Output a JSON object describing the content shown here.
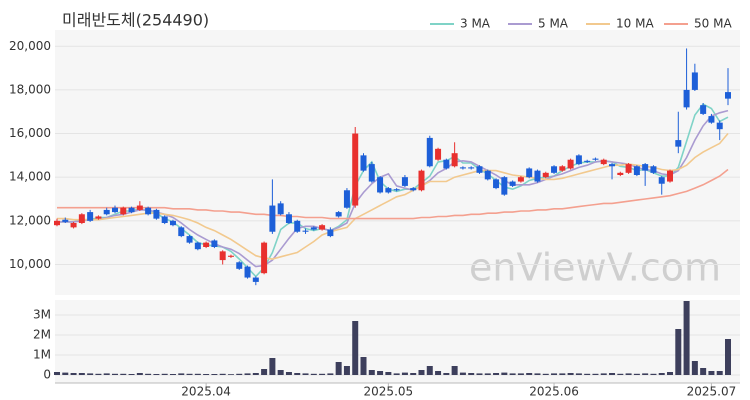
{
  "chart_data": {
    "type": "candlestick",
    "title": "미래반도체(254490)",
    "watermark": "enViewV.com",
    "legend": "top-right",
    "grid": true,
    "categories": [
      null,
      null,
      null,
      null,
      null,
      null,
      null,
      null,
      null,
      null,
      null,
      null,
      null,
      null,
      null,
      null,
      null,
      null,
      "2025.04",
      null,
      null,
      null,
      null,
      null,
      null,
      null,
      null,
      null,
      null,
      null,
      null,
      null,
      null,
      null,
      null,
      null,
      null,
      null,
      null,
      null,
      "2025.05",
      null,
      null,
      null,
      null,
      null,
      null,
      null,
      null,
      null,
      null,
      null,
      null,
      null,
      null,
      null,
      null,
      null,
      null,
      null,
      "2025.06",
      null,
      null,
      null,
      null,
      null,
      null,
      null,
      null,
      null,
      null,
      null,
      null,
      null,
      null,
      null,
      null,
      null,
      null,
      "2025.07",
      null,
      null
    ],
    "open": [
      11800,
      12050,
      11700,
      11900,
      12400,
      12100,
      12500,
      12600,
      12300,
      12600,
      12500,
      12600,
      12500,
      12200,
      12000,
      11700,
      11300,
      11000,
      10800,
      11100,
      10200,
      10350,
      10100,
      9900,
      9400,
      9600,
      12700,
      12800,
      12300,
      12000,
      11550,
      11700,
      11600,
      11600,
      12400,
      13400,
      12700,
      15000,
      14600,
      14000,
      13500,
      13450,
      14000,
      13500,
      13400,
      15800,
      14800,
      14800,
      14500,
      14450,
      14450,
      14500,
      14300,
      13900,
      14000,
      13800,
      13800,
      14400,
      14300,
      14000,
      14500,
      14300,
      14400,
      15000,
      14750,
      14850,
      14600,
      14600,
      14100,
      14200,
      14500,
      14600,
      14500,
      14000,
      13800,
      15700,
      18000,
      18800,
      17300,
      16800,
      16500,
      17900
    ],
    "high": [
      12100,
      12150,
      11950,
      12350,
      12500,
      12250,
      12600,
      12700,
      12650,
      12650,
      12900,
      12650,
      12550,
      12250,
      12050,
      11750,
      11350,
      11050,
      11050,
      11150,
      10650,
      10450,
      10150,
      9950,
      9450,
      11050,
      13900,
      12900,
      12400,
      12050,
      11650,
      11750,
      11850,
      11700,
      12450,
      13500,
      16300,
      15100,
      14700,
      14050,
      13550,
      13500,
      14100,
      13550,
      14350,
      15900,
      15350,
      14850,
      15600,
      14500,
      14500,
      14550,
      14350,
      13950,
      14050,
      13850,
      14050,
      14450,
      14350,
      14250,
      14550,
      14550,
      14850,
      15050,
      14800,
      14900,
      14850,
      14650,
      14250,
      14650,
      14550,
      14650,
      14550,
      14050,
      14350,
      17000,
      19900,
      19200,
      17400,
      16900,
      16600,
      19000
    ],
    "low": [
      11750,
      11900,
      11650,
      11850,
      11950,
      12050,
      12250,
      12350,
      12250,
      12350,
      12450,
      12250,
      12050,
      11850,
      11750,
      11250,
      10950,
      10650,
      10750,
      10750,
      10000,
      10300,
      9750,
      9350,
      9050,
      9550,
      11400,
      12250,
      11850,
      11450,
      11400,
      11550,
      11550,
      11250,
      12150,
      12550,
      12600,
      14250,
      13750,
      13250,
      13250,
      13350,
      13550,
      13350,
      13350,
      14450,
      14750,
      14350,
      14450,
      14350,
      14350,
      14150,
      13850,
      13450,
      13150,
      13550,
      13750,
      13950,
      13750,
      13950,
      14150,
      14250,
      14350,
      14550,
      14650,
      14750,
      14550,
      13900,
      14050,
      14150,
      14050,
      13600,
      14150,
      13200,
      13750,
      15100,
      17100,
      17950,
      16850,
      16450,
      15700,
      17300
    ],
    "close": [
      12000,
      11950,
      11900,
      12300,
      12000,
      12200,
      12300,
      12400,
      12600,
      12400,
      12700,
      12300,
      12100,
      11900,
      11800,
      11300,
      11000,
      10700,
      11000,
      10800,
      10600,
      10400,
      9800,
      9400,
      9200,
      11000,
      11500,
      12300,
      11900,
      11500,
      11500,
      11600,
      11800,
      11300,
      12200,
      12600,
      16000,
      14300,
      13800,
      13300,
      13300,
      13400,
      13600,
      13400,
      14300,
      14500,
      15300,
      14400,
      15100,
      14400,
      14400,
      14200,
      13900,
      13500,
      13200,
      13600,
      14000,
      14000,
      13800,
      14200,
      14200,
      14500,
      14800,
      14600,
      14700,
      14800,
      14800,
      14500,
      14200,
      14600,
      14100,
      14300,
      14200,
      13700,
      14300,
      15400,
      17200,
      18000,
      16900,
      16500,
      16200,
      17600
    ],
    "up_color": "#e8302e",
    "down_color": "#1d5fd8",
    "ylim": [
      8600,
      20700
    ],
    "yticks": [
      {
        "value": 10000,
        "label": "10,000"
      },
      {
        "value": 12000,
        "label": "12,000"
      },
      {
        "value": 14000,
        "label": "14,000"
      },
      {
        "value": 16000,
        "label": "16,000"
      },
      {
        "value": 18000,
        "label": "18,000"
      },
      {
        "value": 20000,
        "label": "20,000"
      }
    ],
    "ma_series": [
      {
        "name": "3 MA",
        "color": "#7fd3c7",
        "values": [
          11950,
          11950,
          11950,
          12050,
          12050,
          12150,
          12150,
          12300,
          12450,
          12450,
          12550,
          12450,
          12350,
          12100,
          11950,
          11650,
          11350,
          11000,
          10900,
          10850,
          10800,
          10600,
          10250,
          9850,
          9450,
          9850,
          10550,
          11600,
          11900,
          11900,
          11650,
          11550,
          11650,
          11550,
          11750,
          12050,
          13600,
          14300,
          14700,
          13800,
          13450,
          13350,
          13450,
          13450,
          13750,
          14050,
          14700,
          14750,
          14950,
          14650,
          14650,
          14350,
          14150,
          13850,
          13550,
          13450,
          13600,
          13850,
          13950,
          14000,
          14050,
          14300,
          14500,
          14650,
          14700,
          14700,
          14750,
          14700,
          14500,
          14450,
          14300,
          14350,
          14200,
          14050,
          14050,
          14450,
          15650,
          16850,
          17350,
          17150,
          16550,
          16750
        ]
      },
      {
        "name": "5 MA",
        "color": "#aa9bd1",
        "values": [
          11950,
          11950,
          11950,
          12000,
          12050,
          12050,
          12150,
          12250,
          12300,
          12400,
          12500,
          12500,
          12400,
          12300,
          12150,
          11900,
          11600,
          11350,
          11150,
          10950,
          10800,
          10700,
          10500,
          10200,
          9900,
          9950,
          10200,
          10700,
          11200,
          11650,
          11750,
          11750,
          11650,
          11550,
          11700,
          11900,
          12800,
          13300,
          13700,
          14000,
          14150,
          13600,
          13500,
          13400,
          13600,
          13850,
          14200,
          14400,
          14700,
          14750,
          14700,
          14500,
          14300,
          14100,
          13850,
          13650,
          13650,
          13650,
          13750,
          13900,
          14050,
          14150,
          14300,
          14450,
          14550,
          14700,
          14750,
          14700,
          14650,
          14600,
          14450,
          14350,
          14300,
          14150,
          14100,
          14300,
          14900,
          15700,
          16350,
          16800,
          16950,
          17050
        ]
      },
      {
        "name": "10 MA",
        "color": "#f2c98e",
        "values": [
          12100,
          12100,
          12050,
          12050,
          12050,
          12050,
          12100,
          12150,
          12200,
          12250,
          12300,
          12350,
          12350,
          12300,
          12250,
          12150,
          12050,
          11900,
          11700,
          11550,
          11350,
          11150,
          10900,
          10650,
          10400,
          10300,
          10250,
          10350,
          10450,
          10550,
          10800,
          11050,
          11350,
          11500,
          11600,
          11700,
          12100,
          12300,
          12500,
          12700,
          12900,
          13100,
          13200,
          13400,
          13600,
          13800,
          13800,
          13800,
          14000,
          14100,
          14200,
          14300,
          14300,
          14300,
          14200,
          14100,
          14050,
          14000,
          13950,
          13900,
          13900,
          13950,
          14050,
          14150,
          14250,
          14350,
          14450,
          14550,
          14550,
          14600,
          14550,
          14500,
          14450,
          14350,
          14300,
          14350,
          14550,
          14900,
          15150,
          15350,
          15550,
          16000
        ]
      },
      {
        "name": "50 MA",
        "color": "#f4a08f",
        "values": [
          12600,
          12600,
          12600,
          12600,
          12600,
          12600,
          12600,
          12600,
          12600,
          12600,
          12600,
          12600,
          12600,
          12600,
          12550,
          12550,
          12550,
          12500,
          12500,
          12450,
          12450,
          12400,
          12400,
          12350,
          12300,
          12300,
          12250,
          12250,
          12200,
          12200,
          12150,
          12150,
          12150,
          12100,
          12100,
          12100,
          12100,
          12100,
          12100,
          12100,
          12100,
          12100,
          12100,
          12100,
          12150,
          12150,
          12200,
          12200,
          12250,
          12250,
          12300,
          12300,
          12350,
          12350,
          12400,
          12400,
          12450,
          12450,
          12500,
          12500,
          12550,
          12550,
          12600,
          12650,
          12700,
          12750,
          12800,
          12800,
          12850,
          12900,
          12950,
          13000,
          13050,
          13100,
          13150,
          13250,
          13350,
          13500,
          13650,
          13850,
          14050,
          14350
        ]
      }
    ],
    "volume": {
      "color": "#3d3f5c",
      "ylim": [
        0,
        3750000
      ],
      "yticks": [
        0,
        {
          "value": 1000000,
          "label": "1M"
        },
        {
          "value": 2000000,
          "label": "2M"
        },
        {
          "value": 3000000,
          "label": "3M"
        }
      ],
      "values": [
        150000,
        120000,
        100000,
        100000,
        80000,
        60000,
        80000,
        60000,
        60000,
        50000,
        100000,
        60000,
        50000,
        60000,
        50000,
        80000,
        60000,
        60000,
        50000,
        50000,
        60000,
        40000,
        60000,
        80000,
        100000,
        300000,
        850000,
        250000,
        150000,
        100000,
        80000,
        60000,
        60000,
        80000,
        650000,
        450000,
        2700000,
        900000,
        250000,
        200000,
        150000,
        80000,
        120000,
        100000,
        250000,
        450000,
        200000,
        100000,
        450000,
        120000,
        100000,
        80000,
        80000,
        100000,
        120000,
        80000,
        80000,
        100000,
        80000,
        60000,
        80000,
        80000,
        100000,
        80000,
        60000,
        60000,
        80000,
        100000,
        60000,
        80000,
        60000,
        80000,
        60000,
        100000,
        150000,
        2300000,
        3700000,
        700000,
        350000,
        200000,
        200000,
        1800000
      ]
    }
  }
}
